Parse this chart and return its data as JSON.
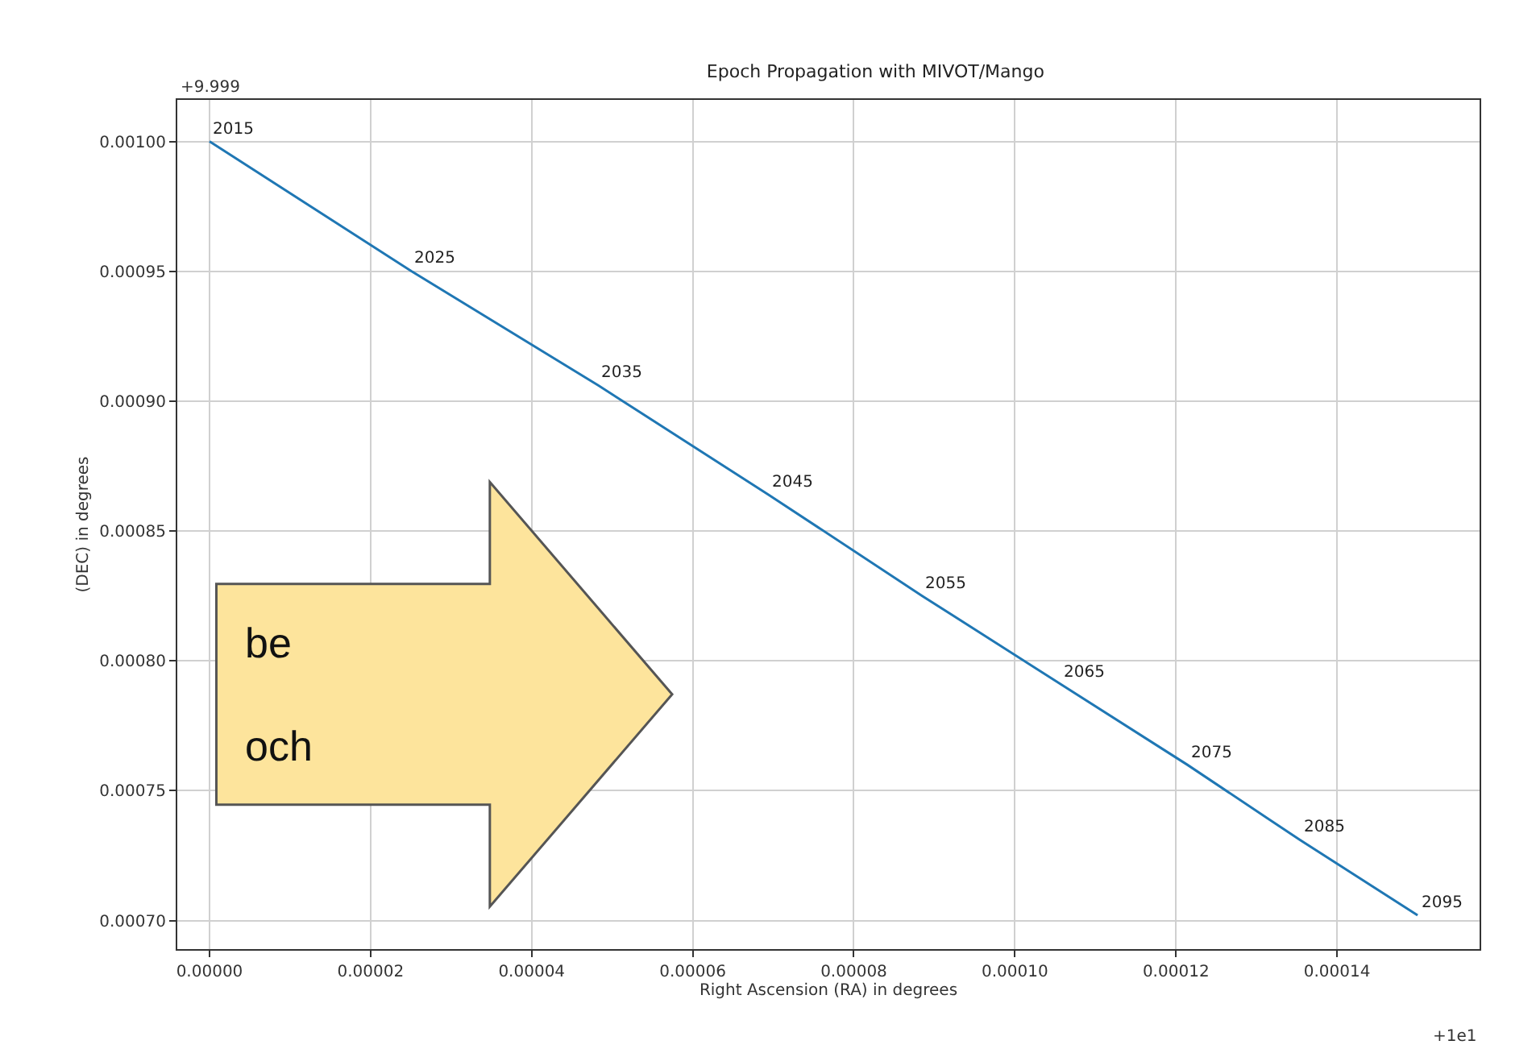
{
  "chart_data": {
    "type": "line",
    "title": "Epoch Propagation with MIVOT/Mango",
    "xlabel": "Right Ascension (RA) in degrees",
    "ylabel": "(DEC) in degrees",
    "x": [
      0,
      2.51e-05,
      4.83e-05,
      6.94e-05,
      8.85e-05,
      0.0001057,
      0.0001214,
      0.0001354,
      0.00015
    ],
    "series": [
      {
        "color": "#1f77b4",
        "values": [
          0.001,
          0.00095,
          0.000906,
          0.000864,
          0.000825,
          0.000791,
          0.00076,
          0.000731,
          0.000702
        ]
      }
    ],
    "xlim": [
      -4e-06,
      0.0001577
    ],
    "ylim": [
      0.000689,
      0.001016
    ],
    "xticks": [
      {
        "value": 0,
        "label": "0.00000"
      },
      {
        "value": 2e-05,
        "label": "0.00002"
      },
      {
        "value": 4e-05,
        "label": "0.00004"
      },
      {
        "value": 6e-05,
        "label": "0.00006"
      },
      {
        "value": 8e-05,
        "label": "0.00008"
      },
      {
        "value": 0.0001,
        "label": "0.00010"
      },
      {
        "value": 0.00012,
        "label": "0.00012"
      },
      {
        "value": 0.00014,
        "label": "0.00014"
      }
    ],
    "yticks": [
      {
        "value": 0.0007,
        "label": "0.00070"
      },
      {
        "value": 0.00075,
        "label": "0.00075"
      },
      {
        "value": 0.0008,
        "label": "0.00080"
      },
      {
        "value": 0.00085,
        "label": "0.00085"
      },
      {
        "value": 0.0009,
        "label": "0.00090"
      },
      {
        "value": 0.00095,
        "label": "0.00095"
      },
      {
        "value": 0.001,
        "label": "0.00100"
      }
    ],
    "grid": true,
    "marker": "none",
    "line_style": "solid",
    "annotations": [
      "+9.999",
      "+1e1",
      "be",
      "och",
      {
        "text": "2015",
        "x": 0,
        "y": 0.001
      },
      {
        "text": "2025",
        "x": 2.51e-05,
        "y": 0.00095
      },
      {
        "text": "2035",
        "x": 4.83e-05,
        "y": 0.000906
      },
      {
        "text": "2045",
        "x": 6.94e-05,
        "y": 0.000864
      },
      {
        "text": "2055",
        "x": 8.85e-05,
        "y": 0.000825
      },
      {
        "text": "2065",
        "x": 0.0001057,
        "y": 0.000791
      },
      {
        "text": "2075",
        "x": 0.0001214,
        "y": 0.00076
      },
      {
        "text": "2085",
        "x": 0.0001354,
        "y": 0.000731
      },
      {
        "text": "2095",
        "x": 0.00015,
        "y": 0.000702
      }
    ]
  }
}
